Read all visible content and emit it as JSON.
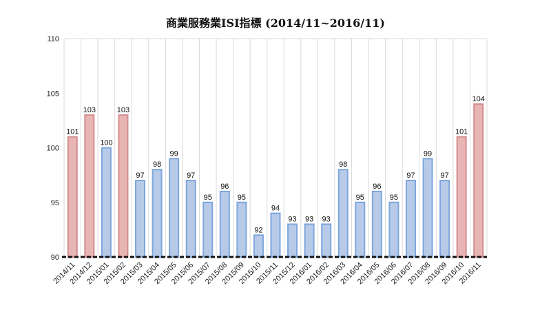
{
  "chart_data": {
    "type": "bar",
    "title": "商業服務業ISI指標 (2014/11~2016/11)",
    "xlabel": "",
    "ylabel": "",
    "ylim": [
      90,
      110
    ],
    "yticks": [
      90,
      95,
      100,
      105,
      110
    ],
    "grid": "vertical",
    "legend": "none",
    "categories": [
      "2014/11",
      "2014/12",
      "2015/01",
      "2015/02",
      "2015/03",
      "2015/04",
      "2015/05",
      "2015/06",
      "2015/07",
      "2015/08",
      "2015/09",
      "2015/10",
      "2015/11",
      "2015/12",
      "2016/01",
      "2016/02",
      "2016/03",
      "2016/04",
      "2016/05",
      "2016/06",
      "2016/07",
      "2016/08",
      "2016/09",
      "2016/10",
      "2016/11"
    ],
    "values": [
      101,
      103,
      100,
      103,
      97,
      98,
      99,
      97,
      95,
      96,
      95,
      92,
      94,
      93,
      93,
      93,
      98,
      95,
      96,
      95,
      97,
      99,
      97,
      101,
      104
    ],
    "highlight": [
      true,
      true,
      false,
      true,
      false,
      false,
      false,
      false,
      false,
      false,
      false,
      false,
      false,
      false,
      false,
      false,
      false,
      false,
      false,
      false,
      false,
      false,
      false,
      true,
      true
    ],
    "colors": {
      "normal_fill": "#b7cbe8",
      "normal_stroke": "#7ea6dd",
      "highlight_fill": "#e8b5b5",
      "highlight_stroke": "#d58c8c",
      "grid": "#d9d9d9",
      "baseline": "#111111"
    }
  }
}
